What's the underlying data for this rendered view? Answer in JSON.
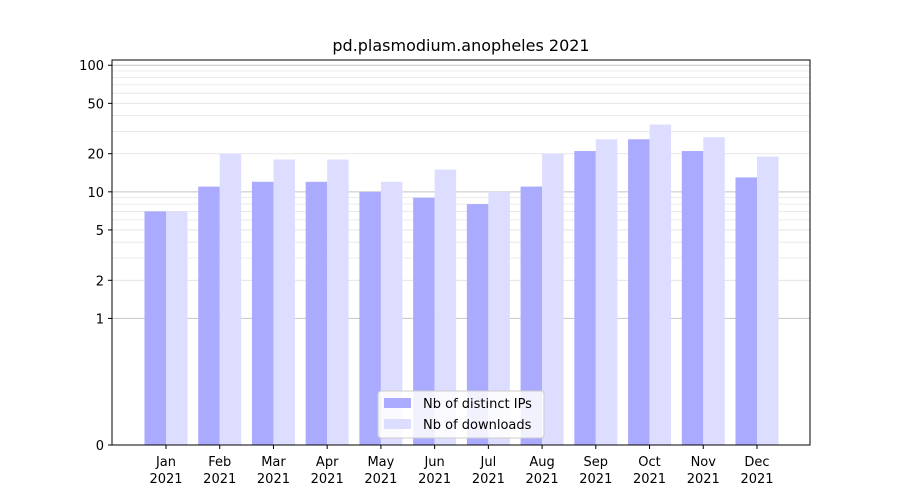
{
  "chart_data": {
    "type": "bar",
    "title": "pd.plasmodium.anopheles 2021",
    "xlabel": "",
    "ylabel": "",
    "yscale": "symlog",
    "yticks": [
      0,
      1,
      2,
      5,
      10,
      20,
      50,
      100
    ],
    "ylim": [
      0,
      110
    ],
    "grid": true,
    "legend_position": "bottom-center",
    "categories": [
      {
        "month": "Jan",
        "year": "2021"
      },
      {
        "month": "Feb",
        "year": "2021"
      },
      {
        "month": "Mar",
        "year": "2021"
      },
      {
        "month": "Apr",
        "year": "2021"
      },
      {
        "month": "May",
        "year": "2021"
      },
      {
        "month": "Jun",
        "year": "2021"
      },
      {
        "month": "Jul",
        "year": "2021"
      },
      {
        "month": "Aug",
        "year": "2021"
      },
      {
        "month": "Sep",
        "year": "2021"
      },
      {
        "month": "Oct",
        "year": "2021"
      },
      {
        "month": "Nov",
        "year": "2021"
      },
      {
        "month": "Dec",
        "year": "2021"
      }
    ],
    "series": [
      {
        "name": "Nb of distinct IPs",
        "color": "#aaaaff",
        "values": [
          7,
          11,
          12,
          12,
          10,
          9,
          8,
          11,
          21,
          26,
          21,
          13
        ]
      },
      {
        "name": "Nb of downloads",
        "color": "#ddddff",
        "values": [
          7,
          20,
          18,
          18,
          12,
          15,
          10,
          20,
          26,
          34,
          27,
          19
        ]
      }
    ]
  }
}
